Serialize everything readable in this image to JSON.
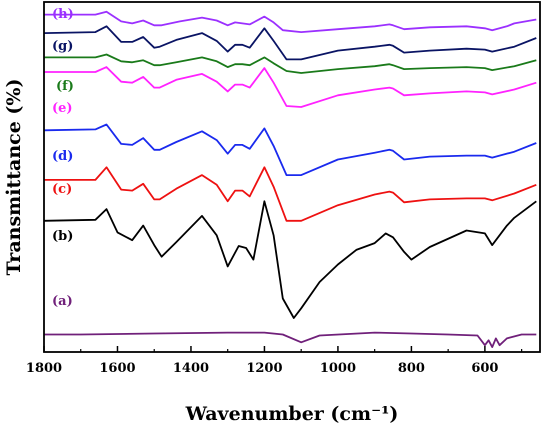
{
  "chart_data": {
    "type": "line",
    "title": "",
    "xlabel": "Wavenumber (cm⁻¹)",
    "ylabel": "Transmittance (%)",
    "xlim": [
      1800,
      450
    ],
    "x_reversed": true,
    "y_ticks_shown": false,
    "xticks": [
      1800,
      1600,
      1400,
      1200,
      1000,
      800,
      600
    ],
    "grid": false,
    "legend": "labels beside curves",
    "series": [
      {
        "name": "(h)",
        "color": "#9b30ff",
        "points": [
          [
            1800,
            97
          ],
          [
            1660,
            97
          ],
          [
            1630,
            100
          ],
          [
            1590,
            90
          ],
          [
            1560,
            88
          ],
          [
            1530,
            91
          ],
          [
            1500,
            86
          ],
          [
            1480,
            86
          ],
          [
            1430,
            90
          ],
          [
            1370,
            94
          ],
          [
            1330,
            91
          ],
          [
            1300,
            86
          ],
          [
            1280,
            89
          ],
          [
            1240,
            87
          ],
          [
            1200,
            95
          ],
          [
            1175,
            89
          ],
          [
            1150,
            81
          ],
          [
            1100,
            79
          ],
          [
            1000,
            82
          ],
          [
            900,
            85
          ],
          [
            860,
            87
          ],
          [
            850,
            86
          ],
          [
            820,
            82
          ],
          [
            750,
            84
          ],
          [
            650,
            85
          ],
          [
            600,
            83
          ],
          [
            580,
            81
          ],
          [
            540,
            85
          ],
          [
            520,
            88
          ],
          [
            460,
            92
          ]
        ]
      },
      {
        "name": "(g)",
        "color": "#0a1464",
        "points": [
          [
            1800,
            78
          ],
          [
            1660,
            79
          ],
          [
            1630,
            85
          ],
          [
            1590,
            69
          ],
          [
            1560,
            69
          ],
          [
            1530,
            74
          ],
          [
            1500,
            63
          ],
          [
            1485,
            64
          ],
          [
            1440,
            71
          ],
          [
            1370,
            78
          ],
          [
            1330,
            70
          ],
          [
            1300,
            59
          ],
          [
            1280,
            66
          ],
          [
            1260,
            66
          ],
          [
            1240,
            63
          ],
          [
            1200,
            83
          ],
          [
            1175,
            70
          ],
          [
            1140,
            51
          ],
          [
            1100,
            51
          ],
          [
            1000,
            60
          ],
          [
            900,
            64
          ],
          [
            860,
            66
          ],
          [
            850,
            65
          ],
          [
            820,
            58
          ],
          [
            750,
            60
          ],
          [
            650,
            62
          ],
          [
            600,
            61
          ],
          [
            580,
            59
          ],
          [
            520,
            64
          ],
          [
            460,
            73
          ]
        ]
      },
      {
        "name": "(f)",
        "color": "#1a7a1a",
        "points": [
          [
            1800,
            53
          ],
          [
            1660,
            53
          ],
          [
            1630,
            56
          ],
          [
            1590,
            49
          ],
          [
            1560,
            48
          ],
          [
            1530,
            50
          ],
          [
            1500,
            45
          ],
          [
            1485,
            45
          ],
          [
            1440,
            48
          ],
          [
            1370,
            53
          ],
          [
            1330,
            49
          ],
          [
            1300,
            43
          ],
          [
            1280,
            46
          ],
          [
            1260,
            46
          ],
          [
            1240,
            45
          ],
          [
            1200,
            53
          ],
          [
            1175,
            47
          ],
          [
            1140,
            39
          ],
          [
            1100,
            37
          ],
          [
            1000,
            41
          ],
          [
            900,
            44
          ],
          [
            860,
            46
          ],
          [
            850,
            45
          ],
          [
            820,
            41
          ],
          [
            750,
            42
          ],
          [
            650,
            43
          ],
          [
            600,
            42
          ],
          [
            580,
            40
          ],
          [
            520,
            44
          ],
          [
            460,
            50
          ]
        ]
      },
      {
        "name": "(e)",
        "color": "#ff22ff",
        "points": [
          [
            1800,
            38
          ],
          [
            1660,
            38
          ],
          [
            1630,
            43
          ],
          [
            1590,
            28
          ],
          [
            1560,
            27
          ],
          [
            1530,
            33
          ],
          [
            1500,
            22
          ],
          [
            1485,
            22
          ],
          [
            1440,
            30
          ],
          [
            1370,
            36
          ],
          [
            1330,
            28
          ],
          [
            1300,
            18
          ],
          [
            1280,
            25
          ],
          [
            1260,
            25
          ],
          [
            1240,
            22
          ],
          [
            1200,
            42
          ],
          [
            1175,
            27
          ],
          [
            1140,
            3
          ],
          [
            1100,
            2
          ],
          [
            1000,
            14
          ],
          [
            900,
            20
          ],
          [
            860,
            22
          ],
          [
            850,
            21
          ],
          [
            820,
            14
          ],
          [
            750,
            16
          ],
          [
            650,
            18
          ],
          [
            600,
            17
          ],
          [
            580,
            15
          ],
          [
            520,
            20
          ],
          [
            460,
            27
          ]
        ]
      },
      {
        "name": "(d)",
        "color": "#1a2aee",
        "points": [
          [
            1800,
            -22
          ],
          [
            1660,
            -21
          ],
          [
            1630,
            -16
          ],
          [
            1590,
            -36
          ],
          [
            1560,
            -37
          ],
          [
            1530,
            -30
          ],
          [
            1500,
            -42
          ],
          [
            1485,
            -42
          ],
          [
            1440,
            -34
          ],
          [
            1370,
            -23
          ],
          [
            1330,
            -32
          ],
          [
            1300,
            -46
          ],
          [
            1280,
            -37
          ],
          [
            1260,
            -37
          ],
          [
            1240,
            -41
          ],
          [
            1200,
            -20
          ],
          [
            1175,
            -38
          ],
          [
            1140,
            -68
          ],
          [
            1100,
            -68
          ],
          [
            1000,
            -52
          ],
          [
            900,
            -45
          ],
          [
            860,
            -42
          ],
          [
            850,
            -43
          ],
          [
            820,
            -52
          ],
          [
            750,
            -49
          ],
          [
            650,
            -48
          ],
          [
            600,
            -48
          ],
          [
            580,
            -50
          ],
          [
            520,
            -44
          ],
          [
            460,
            -35
          ]
        ]
      },
      {
        "name": "(c)",
        "color": "#ee1111",
        "points": [
          [
            1800,
            -73
          ],
          [
            1660,
            -73
          ],
          [
            1630,
            -60
          ],
          [
            1590,
            -83
          ],
          [
            1560,
            -84
          ],
          [
            1530,
            -77
          ],
          [
            1500,
            -93
          ],
          [
            1485,
            -93
          ],
          [
            1440,
            -82
          ],
          [
            1370,
            -68
          ],
          [
            1330,
            -78
          ],
          [
            1300,
            -95
          ],
          [
            1280,
            -84
          ],
          [
            1260,
            -84
          ],
          [
            1240,
            -90
          ],
          [
            1200,
            -60
          ],
          [
            1175,
            -80
          ],
          [
            1140,
            -115
          ],
          [
            1100,
            -115
          ],
          [
            1000,
            -99
          ],
          [
            900,
            -88
          ],
          [
            860,
            -85
          ],
          [
            850,
            -86
          ],
          [
            820,
            -96
          ],
          [
            750,
            -93
          ],
          [
            650,
            -92
          ],
          [
            600,
            -92
          ],
          [
            580,
            -94
          ],
          [
            520,
            -87
          ],
          [
            460,
            -78
          ]
        ]
      },
      {
        "name": "(b)",
        "color": "#000000",
        "points": [
          [
            1800,
            -115
          ],
          [
            1660,
            -114
          ],
          [
            1630,
            -103
          ],
          [
            1600,
            -127
          ],
          [
            1560,
            -135
          ],
          [
            1530,
            -120
          ],
          [
            1500,
            -140
          ],
          [
            1480,
            -152
          ],
          [
            1440,
            -137
          ],
          [
            1370,
            -110
          ],
          [
            1330,
            -130
          ],
          [
            1300,
            -162
          ],
          [
            1270,
            -141
          ],
          [
            1250,
            -143
          ],
          [
            1230,
            -155
          ],
          [
            1200,
            -95
          ],
          [
            1175,
            -130
          ],
          [
            1150,
            -195
          ],
          [
            1120,
            -215
          ],
          [
            1100,
            -205
          ],
          [
            1050,
            -178
          ],
          [
            1000,
            -160
          ],
          [
            950,
            -145
          ],
          [
            900,
            -138
          ],
          [
            870,
            -128
          ],
          [
            850,
            -132
          ],
          [
            820,
            -147
          ],
          [
            800,
            -155
          ],
          [
            750,
            -142
          ],
          [
            650,
            -125
          ],
          [
            600,
            -128
          ],
          [
            580,
            -140
          ],
          [
            540,
            -120
          ],
          [
            520,
            -112
          ],
          [
            460,
            -95
          ]
        ]
      },
      {
        "name": "(a)",
        "color": "#70207a",
        "points": [
          [
            1800,
            -232
          ],
          [
            1700,
            -232
          ],
          [
            1500,
            -231
          ],
          [
            1300,
            -230
          ],
          [
            1200,
            -230
          ],
          [
            1150,
            -232
          ],
          [
            1100,
            -240
          ],
          [
            1050,
            -233
          ],
          [
            900,
            -230
          ],
          [
            800,
            -231
          ],
          [
            700,
            -232
          ],
          [
            620,
            -233
          ],
          [
            600,
            -243
          ],
          [
            590,
            -238
          ],
          [
            580,
            -245
          ],
          [
            570,
            -236
          ],
          [
            560,
            -243
          ],
          [
            540,
            -236
          ],
          [
            500,
            -232
          ],
          [
            460,
            -232
          ]
        ]
      }
    ]
  }
}
